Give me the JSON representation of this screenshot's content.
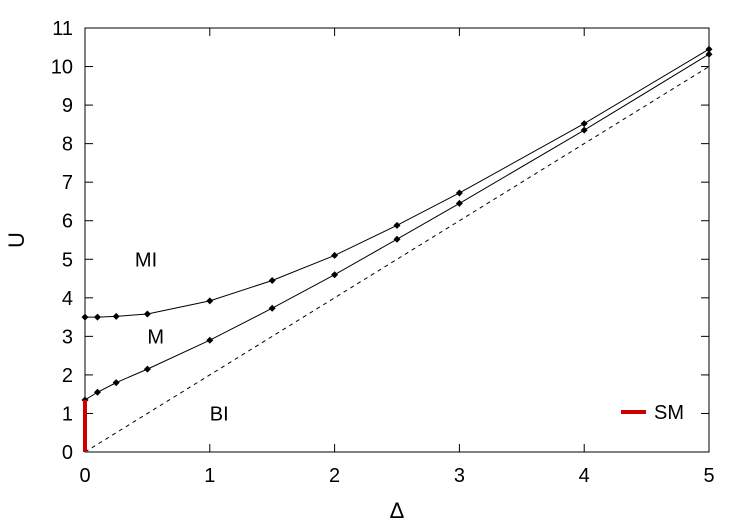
{
  "chart_data": {
    "type": "line",
    "xlabel": "Δ",
    "ylabel": "U",
    "xlim": [
      0,
      5
    ],
    "ylim": [
      0,
      11
    ],
    "xticks": [
      "0",
      "1",
      "2",
      "3",
      "4",
      "5"
    ],
    "yticks": [
      "0",
      "1",
      "2",
      "3",
      "4",
      "5",
      "6",
      "7",
      "8",
      "9",
      "10",
      "11"
    ],
    "grid": false,
    "legend_position": "bottom-right",
    "series": [
      {
        "style": "solid-black-with-diamond-markers",
        "color": "#000000",
        "x": [
          0,
          0.1,
          0.25,
          0.5,
          1,
          1.5,
          2,
          2.5,
          3,
          4,
          5
        ],
        "y": [
          3.5,
          3.5,
          3.52,
          3.58,
          3.92,
          4.45,
          5.1,
          5.88,
          6.72,
          8.52,
          10.45
        ]
      },
      {
        "style": "solid-black-with-diamond-markers",
        "color": "#000000",
        "x": [
          0,
          0.1,
          0.25,
          0.5,
          1,
          1.5,
          2,
          2.5,
          3,
          4,
          5
        ],
        "y": [
          1.35,
          1.55,
          1.8,
          2.15,
          2.9,
          3.73,
          4.6,
          5.52,
          6.45,
          8.35,
          10.32
        ]
      },
      {
        "style": "dashed-black",
        "color": "#000000",
        "x": [
          0,
          5
        ],
        "y": [
          0,
          10
        ]
      },
      {
        "name": "SM",
        "style": "thick-red",
        "color": "#cc0000",
        "x": [
          0,
          0
        ],
        "y": [
          0,
          1.35
        ]
      }
    ],
    "region_labels": [
      {
        "text": "MI",
        "x": 0.4,
        "y": 5.0
      },
      {
        "text": "M",
        "x": 0.5,
        "y": 3.0
      },
      {
        "text": "BI",
        "x": 1.0,
        "y": 1.0
      }
    ]
  }
}
